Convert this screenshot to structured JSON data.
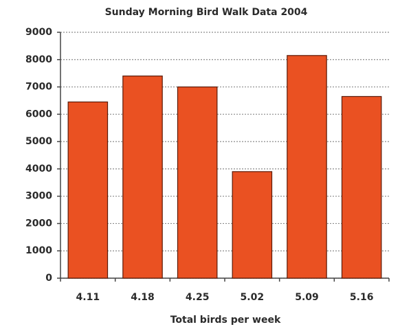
{
  "chart_data": {
    "type": "bar",
    "title": "Sunday Morning Bird Walk Data 2004",
    "x_label": "Total birds per week",
    "categories": [
      "4.11",
      "4.18",
      "4.25",
      "5.02",
      "5.09",
      "5.16"
    ],
    "values": [
      6450,
      7400,
      7000,
      3900,
      8150,
      6650
    ],
    "color": "#ea5122",
    "ylim": [
      0,
      9000
    ],
    "yticks": [
      0,
      1000,
      2000,
      3000,
      4000,
      5000,
      6000,
      7000,
      8000,
      9000
    ],
    "grid": true
  }
}
